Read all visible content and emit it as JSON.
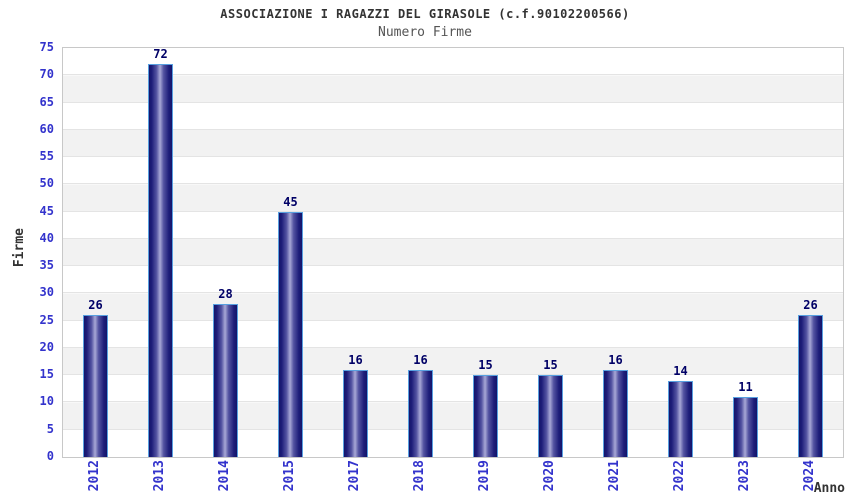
{
  "chart_data": {
    "type": "bar",
    "title": "ASSOCIAZIONE I RAGAZZI DEL GIRASOLE (c.f.90102200566)",
    "subtitle": "Numero Firme",
    "xlabel": "Anno",
    "ylabel": "Firme",
    "categories": [
      "2012",
      "2013",
      "2014",
      "2015",
      "2017",
      "2018",
      "2019",
      "2020",
      "2021",
      "2022",
      "2023",
      "2024"
    ],
    "values": [
      26,
      72,
      28,
      45,
      16,
      16,
      15,
      15,
      16,
      14,
      11,
      26
    ],
    "ylim": [
      0,
      75
    ],
    "yticks": [
      0,
      5,
      10,
      15,
      20,
      25,
      30,
      35,
      40,
      45,
      50,
      55,
      60,
      65,
      70,
      75
    ],
    "grid": "horizontal-stripes-every-5",
    "legend": "none",
    "colors": {
      "bar_edge": "#14146a",
      "bar_center": "#a8a8d6",
      "bar_border": "#58a0e0",
      "value_label": "#000066",
      "tick_label": "#3333cc",
      "axis_title": "#333333",
      "title": "#333333",
      "subtitle": "#555555",
      "stripe_gray": "#f2f2f2",
      "stripe_white": "#ffffff",
      "plot_border": "#c8c8c8",
      "gridline": "#e4e4e4"
    }
  }
}
